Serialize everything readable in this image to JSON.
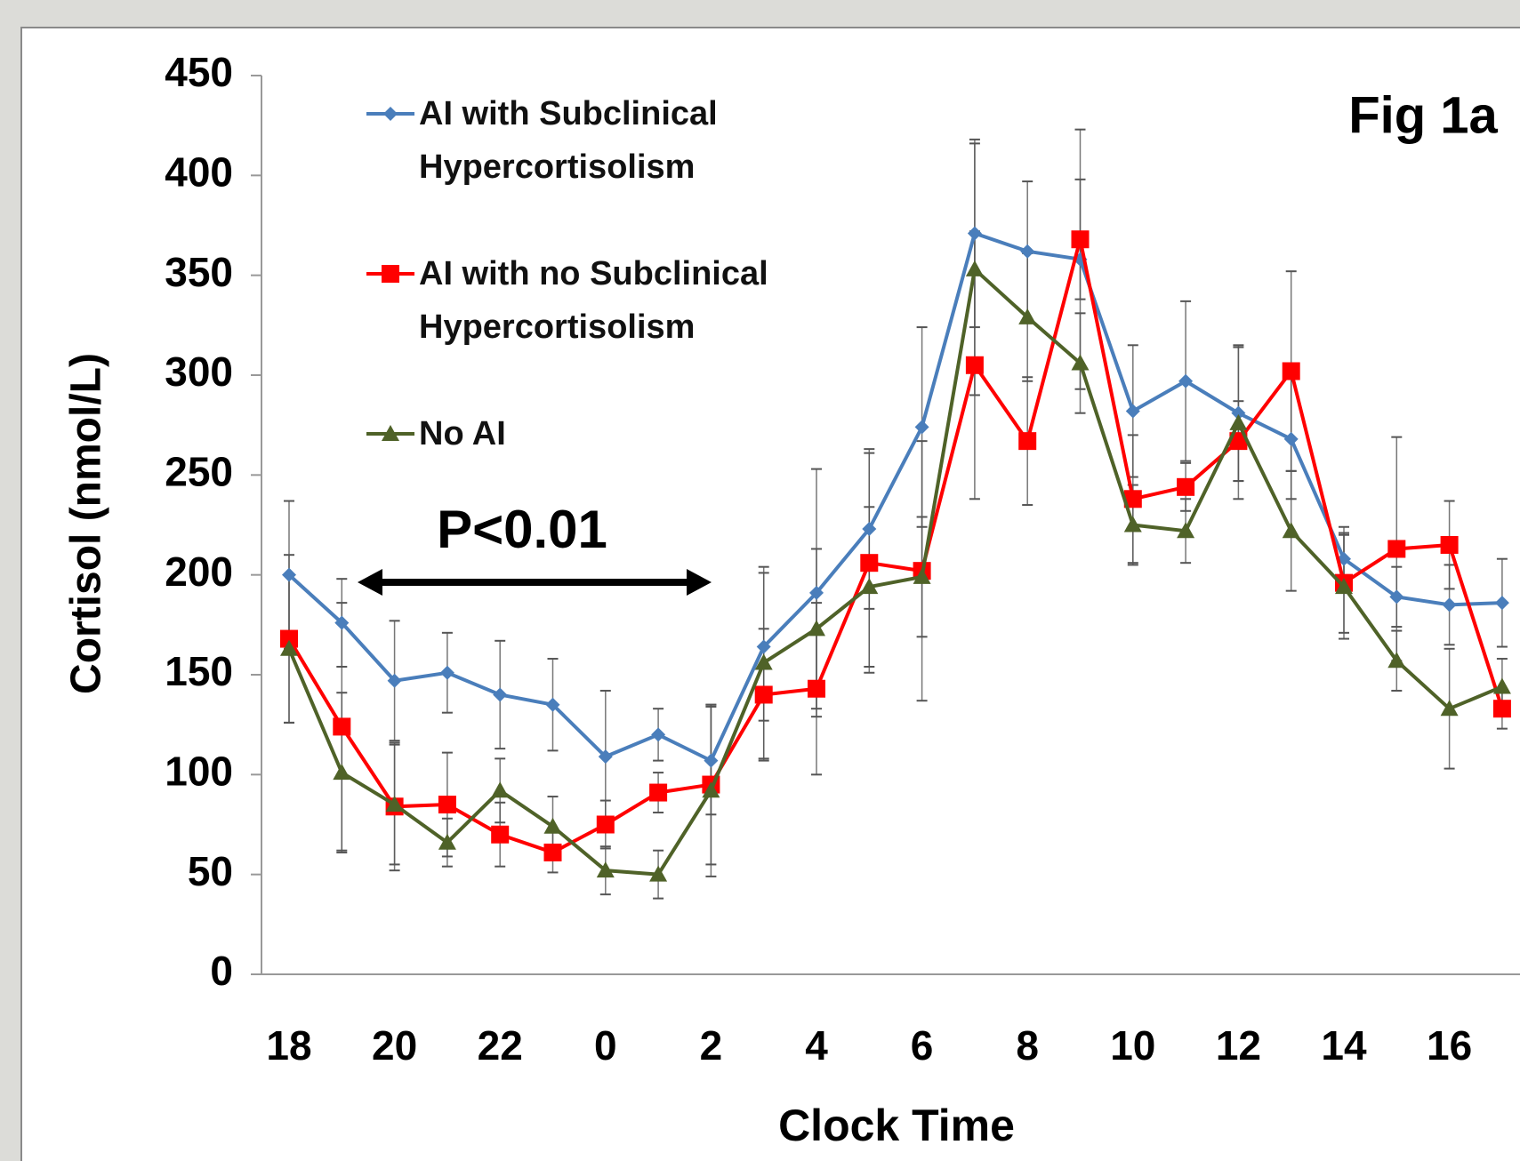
{
  "chart_data": {
    "type": "line",
    "title": "Fig 1a",
    "annotation": "P<0.01",
    "x_label": "Clock Time",
    "y_label": "Cortisol (nmol/L)",
    "categories": [
      "18",
      null,
      "20",
      null,
      "22",
      null,
      "0",
      null,
      "2",
      null,
      "4",
      null,
      "6",
      null,
      "8",
      null,
      "10",
      null,
      "12",
      null,
      "14",
      null,
      "16",
      null
    ],
    "ylim": [
      0,
      450
    ],
    "yticks": [
      0,
      50,
      100,
      150,
      200,
      250,
      300,
      350,
      400,
      450
    ],
    "series": [
      {
        "name": "AI with Subclinical Hypercortisolism",
        "color": "#4a7ebb",
        "marker": "diamond",
        "values": [
          200,
          176,
          147,
          151,
          140,
          135,
          109,
          120,
          107,
          164,
          191,
          223,
          274,
          371,
          362,
          358,
          282,
          297,
          281,
          268,
          208,
          189,
          185,
          186
        ],
        "errors": [
          37,
          22,
          30,
          20,
          27,
          23,
          33,
          13,
          27,
          37,
          62,
          40,
          50,
          47,
          35,
          65,
          33,
          40,
          34,
          30,
          16,
          15,
          20,
          22
        ]
      },
      {
        "name": "AI with no Subclinical Hypercortisolism",
        "color": "#ff0000",
        "marker": "square",
        "values": [
          168,
          124,
          84,
          85,
          70,
          61,
          75,
          91,
          95,
          140,
          143,
          206,
          202,
          305,
          267,
          368,
          238,
          244,
          267,
          302,
          196,
          213,
          215,
          133
        ],
        "errors": [
          42,
          62,
          32,
          26,
          16,
          10,
          12,
          10,
          40,
          33,
          43,
          55,
          65,
          67,
          32,
          30,
          32,
          12,
          20,
          50,
          25,
          56,
          22,
          10
        ]
      },
      {
        "name": "No AI",
        "color": "#4f6228",
        "marker": "triangle",
        "values": [
          163,
          101,
          85,
          66,
          92,
          74,
          52,
          50,
          92,
          156,
          173,
          194,
          199,
          353,
          329,
          306,
          225,
          222,
          276,
          222,
          194,
          157,
          133,
          144
        ],
        "errors": [
          37,
          40,
          30,
          12,
          16,
          15,
          12,
          12,
          43,
          48,
          40,
          40,
          30,
          63,
          32,
          25,
          20,
          16,
          38,
          30,
          26,
          15,
          30,
          14
        ]
      }
    ]
  }
}
